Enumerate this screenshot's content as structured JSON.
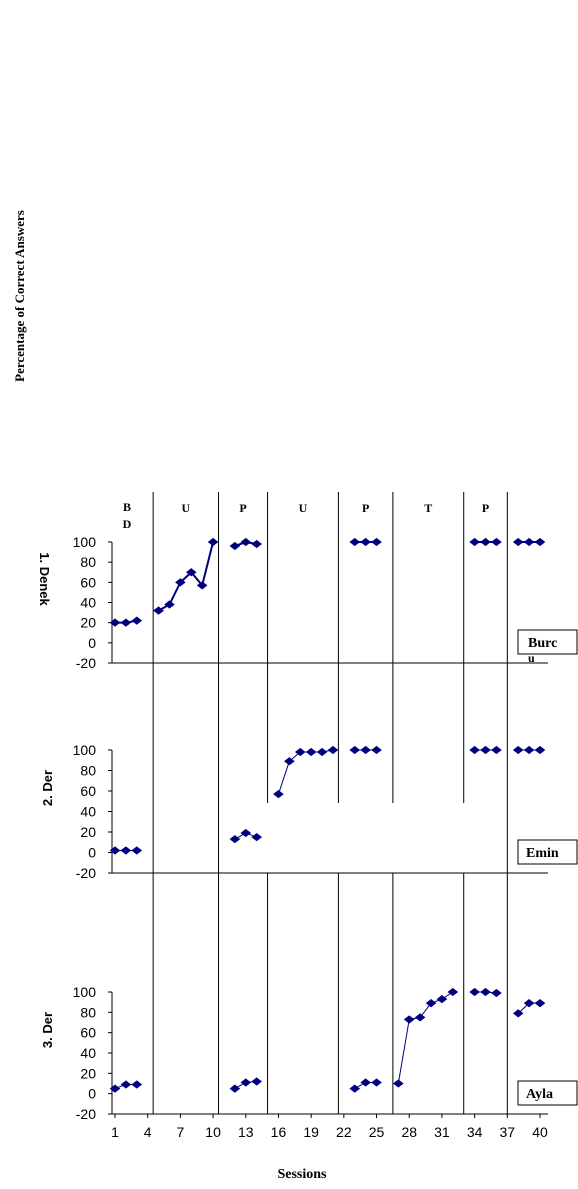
{
  "chart_data": {
    "type": "line",
    "ylabel": "Percentage of Correct Answers",
    "xlabel": "Sessions",
    "x_ticks": [
      "1",
      "4",
      "7",
      "10",
      "13",
      "16",
      "19",
      "22",
      "25",
      "28",
      "31",
      "34",
      "37",
      "40"
    ],
    "y_ticks": [
      "100",
      "80",
      "60",
      "40",
      "20",
      "0",
      "-20"
    ],
    "ylim": [
      -20,
      100
    ],
    "xlim": [
      0,
      41
    ],
    "series_color": "#00007f",
    "phase_labels": [
      {
        "label": "B D",
        "start": 0.5,
        "end": 4.5
      },
      {
        "label": "U",
        "start": 4.5,
        "end": 10.5
      },
      {
        "label": "P",
        "start": 10.5,
        "end": 15
      },
      {
        "label": "U",
        "start": 15,
        "end": 21.5
      },
      {
        "label": "P",
        "start": 21.5,
        "end": 26.5
      },
      {
        "label": "T",
        "start": 26.5,
        "end": 33
      },
      {
        "label": "P",
        "start": 33,
        "end": 37
      },
      {
        "label": "",
        "start": 37,
        "end": 41
      }
    ],
    "phase_lines": [
      4.5,
      10.5,
      15,
      21.5,
      26.5,
      33,
      37
    ],
    "panels": [
      {
        "ylabel": "1. Denek",
        "name": "Burcu",
        "segments": [
          [
            [
              1,
              20
            ],
            [
              2,
              20
            ],
            [
              3,
              22
            ]
          ],
          [
            [
              5,
              32
            ],
            [
              6,
              38
            ],
            [
              7,
              60
            ],
            [
              8,
              70
            ],
            [
              9,
              57
            ],
            [
              10,
              100
            ]
          ],
          [
            [
              12,
              96
            ],
            [
              13,
              100
            ],
            [
              14,
              98
            ]
          ],
          [
            [
              23,
              100
            ],
            [
              24,
              100
            ],
            [
              25,
              100
            ]
          ],
          [
            [
              34,
              100
            ],
            [
              35,
              100
            ],
            [
              36,
              100
            ]
          ],
          [
            [
              38,
              100
            ],
            [
              39,
              100
            ],
            [
              40,
              100
            ]
          ]
        ]
      },
      {
        "ylabel": "2. Der",
        "name": "Emin",
        "segments": [
          [
            [
              1,
              2
            ],
            [
              2,
              2
            ],
            [
              3,
              2
            ]
          ],
          [
            [
              12,
              13
            ],
            [
              13,
              19
            ],
            [
              14,
              15
            ]
          ],
          [
            [
              16,
              57
            ],
            [
              17,
              89
            ],
            [
              18,
              98
            ],
            [
              19,
              98
            ],
            [
              20,
              98
            ],
            [
              21,
              100
            ]
          ],
          [
            [
              23,
              100
            ],
            [
              24,
              100
            ],
            [
              25,
              100
            ]
          ],
          [
            [
              34,
              100
            ],
            [
              35,
              100
            ],
            [
              36,
              100
            ]
          ],
          [
            [
              38,
              100
            ],
            [
              39,
              100
            ],
            [
              40,
              100
            ]
          ]
        ]
      },
      {
        "ylabel": "3. Der",
        "name": "Ayla",
        "segments": [
          [
            [
              1,
              5
            ],
            [
              2,
              9
            ],
            [
              3,
              9
            ]
          ],
          [
            [
              12,
              5
            ],
            [
              13,
              11
            ],
            [
              14,
              12
            ]
          ],
          [
            [
              23,
              5
            ],
            [
              24,
              11
            ],
            [
              25,
              11
            ]
          ],
          [
            [
              27,
              10
            ],
            [
              28,
              73
            ],
            [
              29,
              75
            ],
            [
              30,
              89
            ],
            [
              31,
              93
            ],
            [
              32,
              100
            ]
          ],
          [
            [
              34,
              100
            ],
            [
              35,
              100
            ],
            [
              36,
              99
            ]
          ],
          [
            [
              38,
              79
            ],
            [
              39,
              89
            ],
            [
              40,
              89
            ]
          ]
        ]
      }
    ]
  }
}
